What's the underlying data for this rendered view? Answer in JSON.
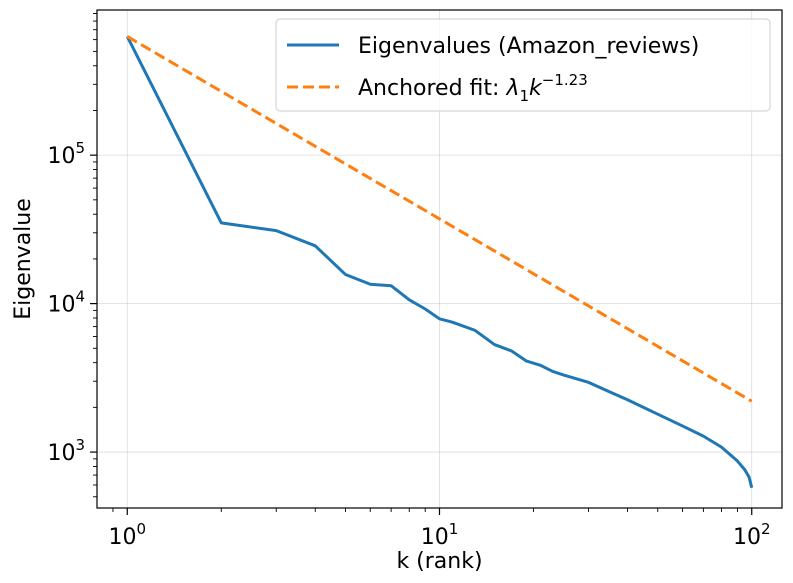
{
  "chart_data": {
    "type": "line",
    "xscale": "log",
    "yscale": "log",
    "xlabel": "k (rank)",
    "ylabel": "Eigenvalue",
    "xlim": [
      0.8,
      125
    ],
    "ylim": [
      420,
      950000
    ],
    "grid": true,
    "legend_position": "top-right",
    "x_ticks": [
      {
        "value": 1,
        "base": "10",
        "exp": "0"
      },
      {
        "value": 10,
        "base": "10",
        "exp": "1"
      },
      {
        "value": 100,
        "base": "10",
        "exp": "2"
      }
    ],
    "y_ticks": [
      {
        "value": 1000,
        "base": "10",
        "exp": "3"
      },
      {
        "value": 10000,
        "base": "10",
        "exp": "4"
      },
      {
        "value": 100000,
        "base": "10",
        "exp": "5"
      }
    ],
    "series": [
      {
        "name": "Eigenvalues (Amazon_reviews)",
        "color": "#1f77b4",
        "style": "solid",
        "x": [
          1,
          2,
          3,
          4,
          5,
          6,
          7,
          8,
          9,
          10,
          11,
          13,
          15,
          17,
          19,
          21,
          23,
          25,
          30,
          35,
          40,
          45,
          50,
          60,
          70,
          80,
          90,
          95,
          98,
          100
        ],
        "y": [
          630000,
          35000,
          31000,
          24500,
          15700,
          13500,
          13200,
          10600,
          9200,
          7900,
          7500,
          6600,
          5300,
          4800,
          4100,
          3850,
          3500,
          3300,
          2950,
          2550,
          2250,
          2000,
          1800,
          1500,
          1280,
          1080,
          870,
          760,
          680,
          575
        ]
      },
      {
        "name": "Anchored fit:",
        "color": "#ff7f0e",
        "style": "dashed",
        "x": [
          1,
          100
        ],
        "y": [
          630000,
          2200
        ]
      }
    ],
    "legend": [
      {
        "label": "Eigenvalues (Amazon_reviews)"
      },
      {
        "label": "Anchored fit: ",
        "math_lambda": "λ",
        "math_sub": "1",
        "math_k": "k",
        "math_exp": "−1.23"
      }
    ]
  }
}
